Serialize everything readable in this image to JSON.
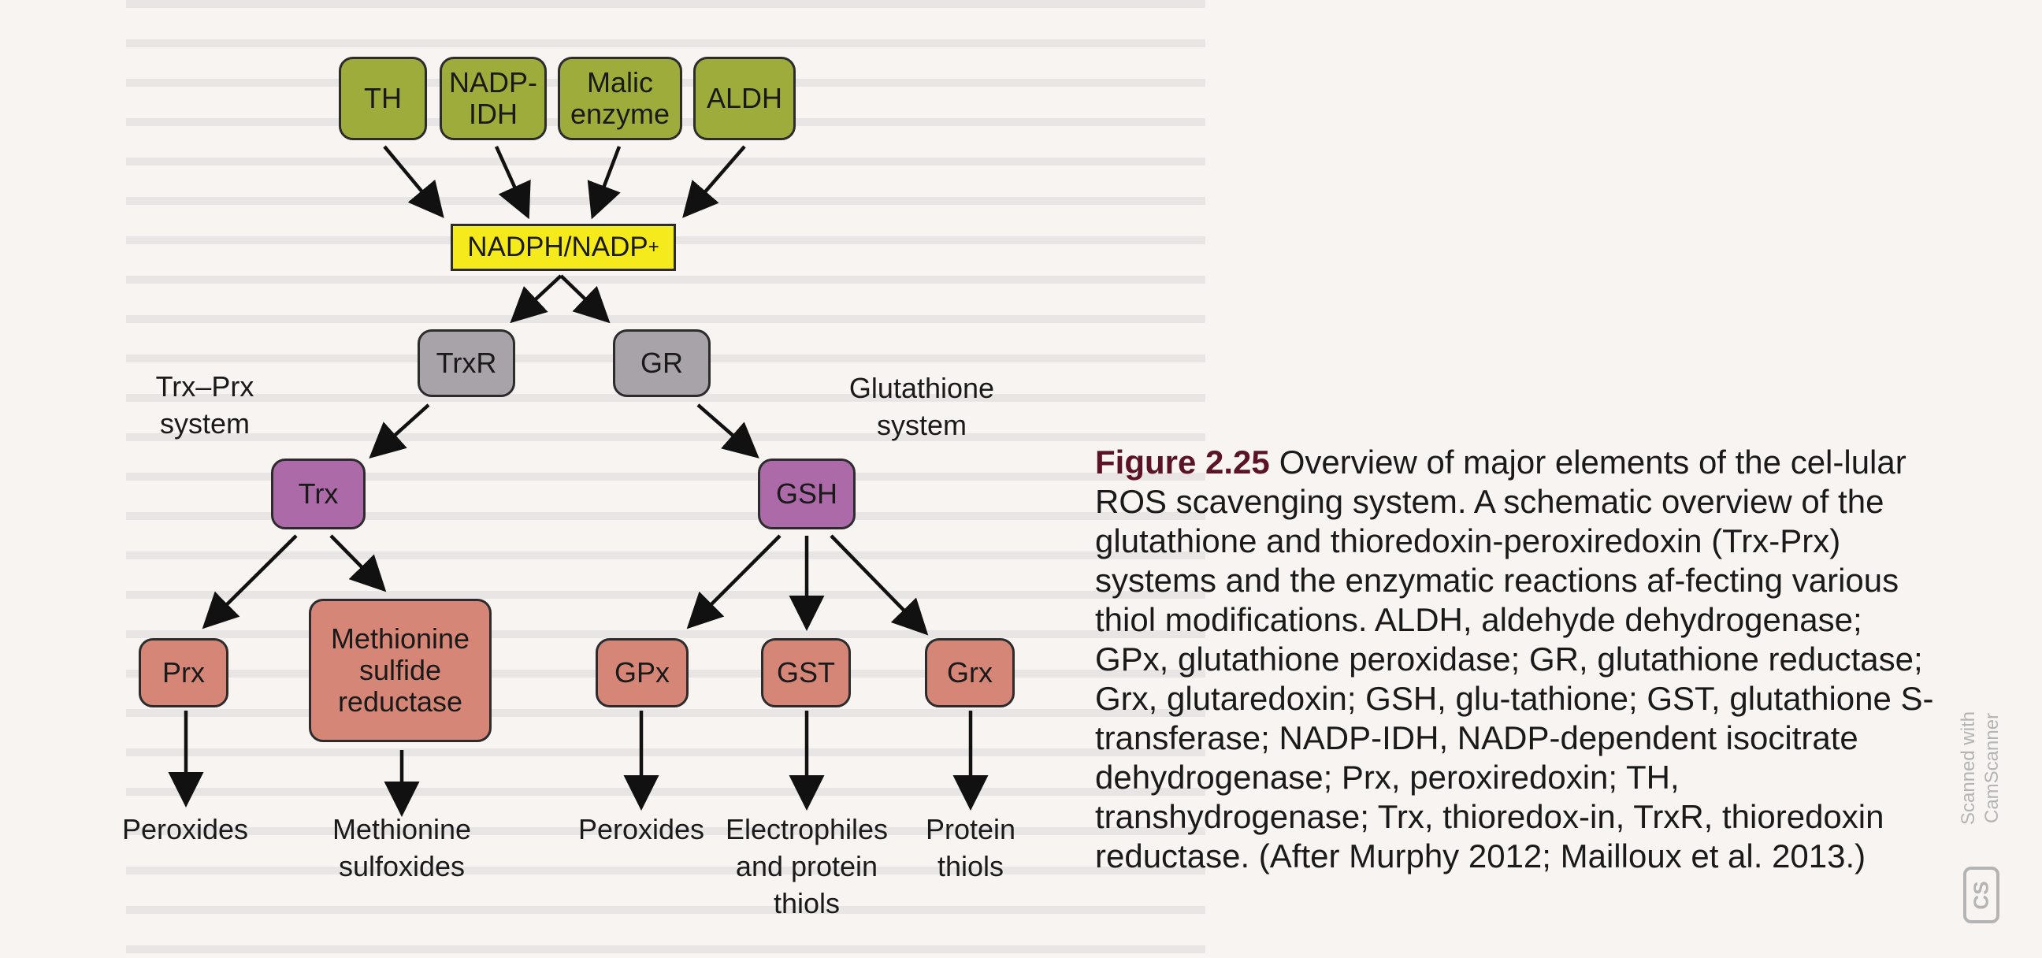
{
  "diagram": {
    "inputs": [
      "TH",
      "NADP-\nIDH",
      "Malic\nenzyme",
      "ALDH"
    ],
    "hub": "NADPH/NADP+",
    "reductases": {
      "left": "TrxR",
      "right": "GR"
    },
    "systems": {
      "left": "Trx–Prx\nsystem",
      "right": "Glutathione\nsystem"
    },
    "carriers": {
      "left": "Trx",
      "right": "GSH"
    },
    "enzymes": [
      "Prx",
      "Methionine\nsulfide\nreductase",
      "GPx",
      "GST",
      "Grx"
    ],
    "targets": [
      "Peroxides",
      "Methionine\nsulfoxides",
      "Peroxides",
      "Electrophiles\nand protein\nthiols",
      "Protein\nthiols"
    ]
  },
  "caption": {
    "figure_label": "Figure 2.25",
    "text": "Overview of major elements of the cel-lular ROS scavenging system. A schematic overview of the glutathione and thioredoxin-peroxiredoxin (Trx-Prx) systems and the enzymatic reactions af-fecting various thiol modifications. ALDH, aldehyde dehydrogenase; GPx, glutathione peroxidase; GR, glutathione reductase; Grx, glutaredoxin; GSH, glu-tathione; GST, glutathione S-transferase; NADP-IDH, NADP-dependent isocitrate dehydrogenase; Prx, peroxiredoxin; TH, transhydrogenase; Trx, thioredox-in, TrxR, thioredoxin reductase. (After Murphy 2012; Mailloux et al. 2013.)"
  },
  "watermark": {
    "text": "Scanned with\nCamScanner",
    "logo": "CS"
  },
  "colors": {
    "input_box": "#9dac3a",
    "hub_box": "#f5ea1b",
    "reductase_box": "#a7a3a8",
    "carrier_box": "#ad6aa9",
    "enzyme_box": "#d58677",
    "figure_label": "#5a1425",
    "arrow": "#111111"
  }
}
